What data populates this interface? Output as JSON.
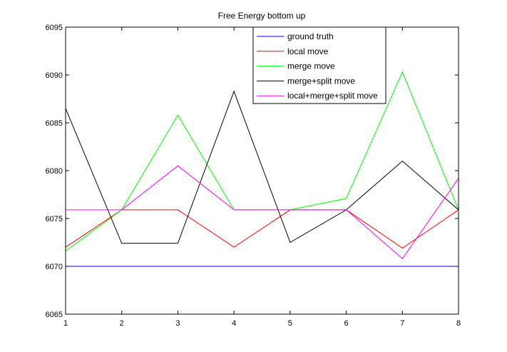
{
  "chart_data": {
    "type": "line",
    "title": "Free Energy  bottom up",
    "xlabel": "",
    "ylabel": "",
    "x": [
      1,
      2,
      3,
      4,
      5,
      6,
      7,
      8
    ],
    "xlim": [
      1,
      8
    ],
    "ylim": [
      6065,
      6095
    ],
    "xticks": [
      "1",
      "2",
      "3",
      "4",
      "5",
      "6",
      "7",
      "8"
    ],
    "yticks": [
      "6065",
      "6070",
      "6075",
      "6080",
      "6085",
      "6090",
      "6095"
    ],
    "grid": false,
    "legend_position": "top-right",
    "series": [
      {
        "name": "ground truth",
        "color": "#0000ff",
        "values": [
          6070,
          6070,
          6070,
          6070,
          6070,
          6070,
          6070,
          6070
        ]
      },
      {
        "name": "local move",
        "color": "#ff0000",
        "values": [
          6072,
          6075.9,
          6075.9,
          6072,
          6075.9,
          6075.9,
          6071.9,
          6075.9
        ]
      },
      {
        "name": "merge move",
        "color": "#00ff00",
        "values": [
          6071.6,
          6075.9,
          6085.8,
          6075.9,
          6075.9,
          6077.1,
          6090.3,
          6075.9
        ]
      },
      {
        "name": "merge+split move",
        "color": "#000000",
        "values": [
          6086.5,
          6072.4,
          6072.4,
          6088.3,
          6072.5,
          6075.9,
          6081,
          6075.9
        ]
      },
      {
        "name": "local+merge+split move",
        "color": "#ff00ff",
        "values": [
          6075.9,
          6075.9,
          6080.5,
          6075.9,
          6075.9,
          6075.9,
          6070.8,
          6079.2
        ]
      }
    ]
  }
}
